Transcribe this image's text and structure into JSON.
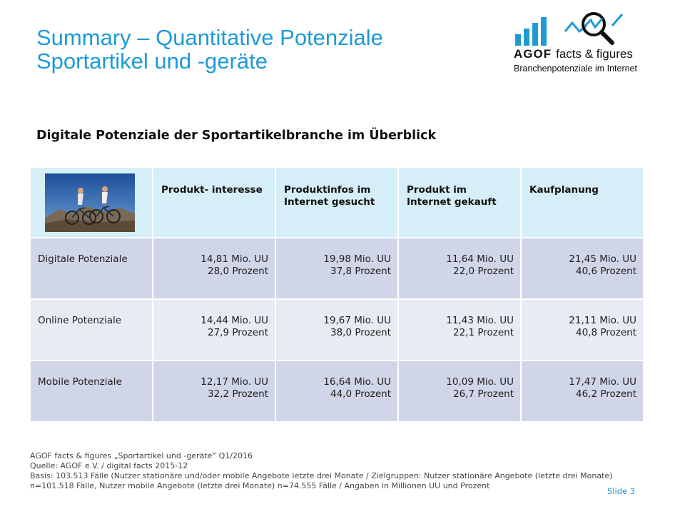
{
  "header": {
    "title_line1": "Summary – Quantitative Potenziale",
    "title_line2": "Sportartikel und -geräte"
  },
  "logo": {
    "brand": "AGOF",
    "tagline": "facts & figures",
    "subline": "Branchenpotenziale im Internet",
    "bar_color": "#1e9ad6"
  },
  "subtitle": "Digitale Potenziale der Sportartikelbranche im Überblick",
  "table": {
    "columns": [
      "Produkt- interesse",
      "Produktinfos im Internet gesucht",
      "Produkt im Internet gekauft",
      "Kaufplanung"
    ],
    "rows": [
      {
        "label": "Digitale Potenziale",
        "cells": [
          {
            "uu": "14,81 Mio. UU",
            "pct": "28,0 Prozent"
          },
          {
            "uu": "19,98 Mio. UU",
            "pct": "37,8 Prozent"
          },
          {
            "uu": "11,64 Mio. UU",
            "pct": "22,0 Prozent"
          },
          {
            "uu": "21,45 Mio. UU",
            "pct": "40,6 Prozent"
          }
        ]
      },
      {
        "label": "Online Potenziale",
        "cells": [
          {
            "uu": "14,44 Mio. UU",
            "pct": "27,9 Prozent"
          },
          {
            "uu": "19,67 Mio. UU",
            "pct": "38,0 Prozent"
          },
          {
            "uu": "11,43 Mio. UU",
            "pct": "22,1 Prozent"
          },
          {
            "uu": "21,11 Mio. UU",
            "pct": "40,8 Prozent"
          }
        ]
      },
      {
        "label": "Mobile Potenziale",
        "cells": [
          {
            "uu": "12,17 Mio. UU",
            "pct": "32,2 Prozent"
          },
          {
            "uu": "16,64 Mio. UU",
            "pct": "44,0 Prozent"
          },
          {
            "uu": "10,09 Mio. UU",
            "pct": "26,7 Prozent"
          },
          {
            "uu": "17,47 Mio. UU",
            "pct": "46,2 Prozent"
          }
        ]
      }
    ]
  },
  "footer": {
    "line1": "AGOF facts & figures „Sportartikel und -geräte“ Q1/2016",
    "line2": "Quelle: AGOF e.V. / digital facts 2015-12",
    "line3": "Basis: 103.513 Fälle (Nutzer stationäre und/oder mobile Angebote letzte drei Monate / Zielgruppen: Nutzer stationäre Angebote (letzte drei Monate) n=101.518 Fälle, Nutzer mobile Angebote (letzte drei Monate) n=74.555 Fälle / Angaben in Millionen UU und Prozent",
    "slide_label": "Slide 3"
  }
}
